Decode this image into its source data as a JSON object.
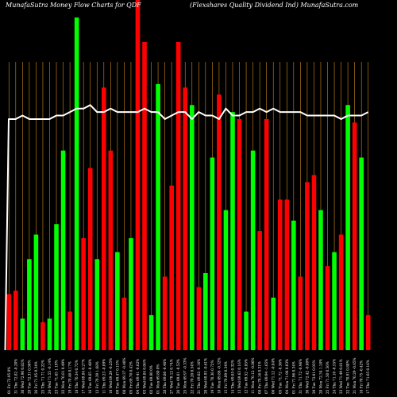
{
  "chart_data": {
    "type": "bar",
    "title_left": "MunafaSutra  Money Flow  Charts for QDF",
    "title_right": "(Flexshares Quality Dividend Ind) MunafaSutra.com",
    "ylim": [
      0,
      100
    ],
    "line_label": "",
    "colors": {
      "background": "#000000",
      "up": "#00ff00",
      "down": "#ff0000",
      "grid": "#d08a1a",
      "line": "#ffffff"
    },
    "categories": [
      "01 Fri 72.95 0%",
      "31 Thu 72.82 -0.20%",
      "30 Wed 72.90 0.82%",
      "29 Tue 72.31 0.50%",
      "26 Fri 71.95 0.34%",
      "25 Thu 71.71 0.22%",
      "24 Wed 71.55 -0.14%",
      "23 Tue 71.65 1.19%",
      "22 Mon 70.81 0.49%",
      "19 Fri 70.46 0.17%",
      "18 Thu 70.34 0.72%",
      "17 Wed 69.84 0.27%",
      "16 Tue 69.65 -0.48%",
      "12 Fri 70.39 1.68%",
      "11 Thu 69.23 -0.09%",
      "10 Wed 69.29 -0.25%",
      "09 Tue 69.47 0.15%",
      "08 Mon 69.37 -0.48%",
      "05 Fri 69.70 0.42%",
      "04 Thu 69.41 -0.62%",
      "03 Wed 69.84 0.06%",
      "02 Tue 69.80 0%",
      "01 Mon 69.80 0%",
      "28 Thu 69.80 -0.46%",
      "27 Wed 70.12 0.74%",
      "26 Tue 69.61 -0.52%",
      "25 Mon 69.97 -0.33%",
      "22 Fri 70.20 0.54%",
      "21 Thu 69.82 -0.16%",
      "20 Wed 69.93 -0.61%",
      "19 Tue 70.36 0.72%",
      "18 Mon 69.86 -0.32%",
      "15 Fri 70.09 0.34%",
      "14 Thu 69.85 0.32%",
      "13 Wed 69.63 0.16%",
      "12 Tue 69.52 -0.85%",
      "11 Mon 70.12 -0.06%",
      "08 Fri 70.16 0.31%",
      "07 Thu 69.94 -1.65%",
      "06 Wed 71.12 -0.84%",
      "05 Tue 71.72 -0.36%",
      "04 Mon 71.98 0.03%",
      "01 Fri 71.96 0.34%",
      "31 Thu 71.72 -0.96%",
      "30 Wed 72.42 -0.80%",
      "29 Tue 73.01 0.93%",
      "28 Mon 72.34 1.18%",
      "25 Fri 71.50 0.56%",
      "24 Thu 71.10 -0.55%",
      "23 Wed 71.49 0.81%",
      "22 Tue 70.91 0.88%",
      "21 Mon 70.29 -0.65%",
      "18 Fri 70.75 -0.42%",
      "17 Thu 71.05 0.16%"
    ],
    "series": [
      {
        "values": [
          16,
          17,
          9,
          26,
          33,
          8,
          9,
          36,
          57,
          11,
          95,
          32,
          52,
          26,
          75,
          57,
          28,
          15,
          32,
          100,
          88,
          10,
          76,
          21,
          47,
          88,
          75,
          70,
          18,
          22,
          55,
          73,
          40,
          68,
          66,
          11,
          57,
          34,
          66,
          15,
          43,
          43,
          37,
          21,
          48,
          50,
          40,
          24,
          28,
          33,
          70,
          65,
          55,
          10
        ]
      },
      {
        "values": [
          66,
          66,
          67,
          66,
          66,
          66,
          66,
          67,
          67,
          68,
          69,
          69,
          70,
          68,
          68,
          69,
          68,
          68,
          68,
          68,
          69,
          68,
          68,
          66,
          67,
          68,
          68,
          66,
          68,
          67,
          67,
          66,
          69,
          67,
          67,
          68,
          68,
          69,
          68,
          69,
          68,
          68,
          68,
          68,
          67,
          67,
          67,
          67,
          67,
          66,
          67,
          67,
          67,
          68
        ]
      }
    ],
    "bar_colors": [
      "red",
      "red",
      "green",
      "green",
      "green",
      "red",
      "green",
      "green",
      "green",
      "red",
      "green",
      "red",
      "red",
      "green",
      "red",
      "red",
      "green",
      "red",
      "green",
      "red",
      "red",
      "green",
      "green",
      "red",
      "red",
      "red",
      "red",
      "green",
      "red",
      "green",
      "green",
      "red",
      "green",
      "green",
      "red",
      "green",
      "green",
      "red",
      "red",
      "green",
      "red",
      "red",
      "green",
      "red",
      "red",
      "red",
      "green",
      "red",
      "green",
      "red",
      "green",
      "red",
      "green",
      "red"
    ]
  }
}
